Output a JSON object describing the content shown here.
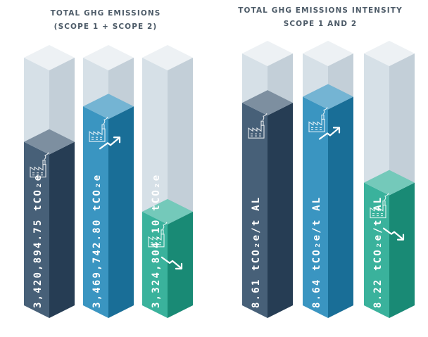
{
  "chart_data": [
    {
      "type": "bar",
      "title_lines": [
        "TOTAL GHG EMISSIONS",
        "(SCOPE 1 + SCOPE 2)"
      ],
      "unit": "tCO₂e",
      "bars": [
        {
          "value": 3420894.75,
          "label": "3,420,894.75 tCO₂e",
          "color": "#2e4a66",
          "trend": "none"
        },
        {
          "value": 3469742.8,
          "label": "3,469,742.80 tCO₂e",
          "color": "#1f86b8",
          "trend": "up"
        },
        {
          "value": 3324804.1,
          "label": "3,324,804.10 tCO₂e",
          "color": "#1fa88f",
          "trend": "down"
        }
      ],
      "icons": [
        "factory-icon",
        "trend-up-icon",
        "trend-down-icon"
      ]
    },
    {
      "type": "bar",
      "title_lines": [
        "TOTAL GHG EMISSIONS INTENSITY",
        "SCOPE 1 AND 2"
      ],
      "unit": "tCO₂e/t AL",
      "bars": [
        {
          "value": 8.61,
          "label": "8.61 tCO₂e/t AL",
          "color": "#2e4a66",
          "trend": "none"
        },
        {
          "value": 8.64,
          "label": "8.64 tCO₂e/t AL",
          "color": "#1f86b8",
          "trend": "up"
        },
        {
          "value": 8.22,
          "label": "8.22 tCO₂e/t AL",
          "color": "#1fa88f",
          "trend": "down"
        }
      ],
      "icons": [
        "factory-icon",
        "trend-up-icon",
        "trend-down-icon"
      ]
    }
  ],
  "colors": {
    "ghost_top": "#edf1f4",
    "ghost_front": "#d6e0e7",
    "ghost_side": "#c3cfd8",
    "title": "#4d5b68"
  }
}
